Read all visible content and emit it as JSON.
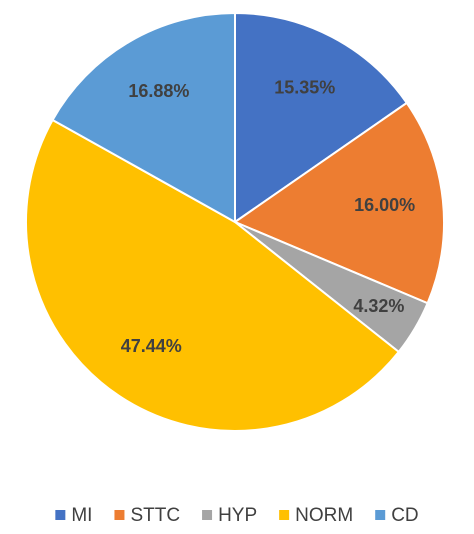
{
  "chart_data": {
    "type": "pie",
    "categories": [
      "MI",
      "STTC",
      "HYP",
      "NORM",
      "CD"
    ],
    "values": [
      15.35,
      16.0,
      4.32,
      47.44,
      16.88
    ],
    "value_labels": [
      "15.35%",
      "16.00%",
      "4.32%",
      "47.44%",
      "16.88%"
    ],
    "colors": [
      "#4472c4",
      "#ed7d31",
      "#a5a5a5",
      "#ffc000",
      "#5b9bd5"
    ],
    "legend": "bottom"
  }
}
